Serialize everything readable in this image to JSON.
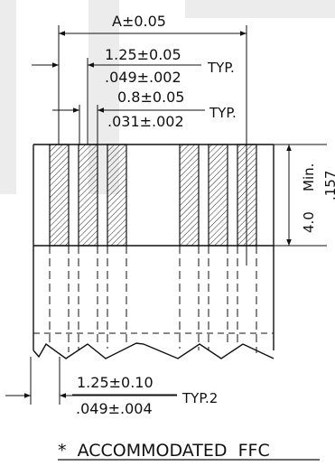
{
  "dimensions": {
    "overall_width": "A±0.05",
    "pitch_mm": "1.25±0.05",
    "pitch_in": ".049±.002",
    "pitch_note": "TYP.",
    "conductor_mm": "0.8±0.05",
    "conductor_in": ".031±.002",
    "conductor_note": "TYP.",
    "exposed_length_mm": "4.0",
    "exposed_length_note": "Min.",
    "exposed_length_in": ".157",
    "bottom_pitch_mm": "1.25±0.10",
    "bottom_pitch_in": ".049±.004",
    "bottom_pitch_note": "TYP.2"
  },
  "caption": "*  ACCOMMODATED  FFC",
  "colors": {
    "line": "#111111",
    "background": "#ffffff",
    "watermark": "#ececec"
  }
}
